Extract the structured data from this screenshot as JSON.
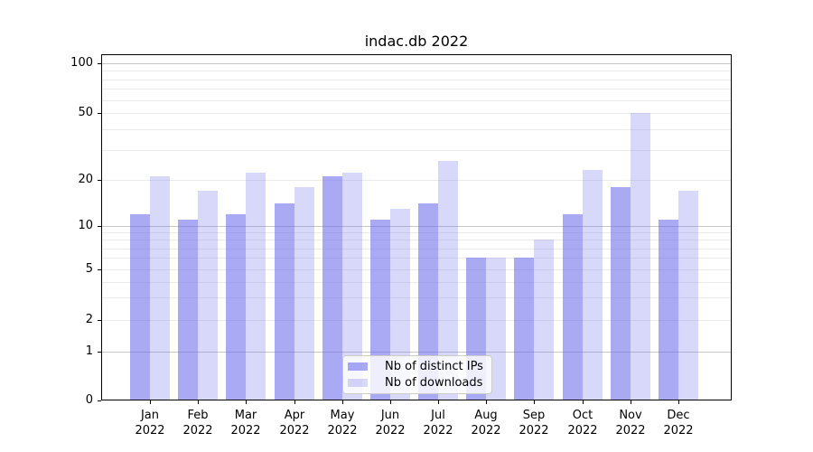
{
  "figure": {
    "background_color": "#ffffff",
    "text_color": "#000000",
    "spine_color": "#000000",
    "grid_major_color": "#c8c8c8",
    "grid_minor_color": "#ebebeb"
  },
  "chart_data": {
    "type": "bar",
    "title": "indac.db 2022",
    "xlabel": "",
    "ylabel": "",
    "x_tick_month_labels": [
      "Jan",
      "Feb",
      "Mar",
      "Apr",
      "May",
      "Jun",
      "Jul",
      "Aug",
      "Sep",
      "Oct",
      "Nov",
      "Dec"
    ],
    "x_tick_year_label": "2022",
    "categories": [
      "Jan 2022",
      "Feb 2022",
      "Mar 2022",
      "Apr 2022",
      "May 2022",
      "Jun 2022",
      "Jul 2022",
      "Aug 2022",
      "Sep 2022",
      "Oct 2022",
      "Nov 2022",
      "Dec 2022"
    ],
    "series": [
      {
        "name": "Nb of distinct IPs",
        "color": "#6464eb",
        "alpha": 0.55,
        "values": [
          12,
          11,
          12,
          14,
          21,
          11,
          14,
          6,
          6,
          12,
          18,
          11
        ]
      },
      {
        "name": "Nb of downloads",
        "color": "#6464eb",
        "alpha": 0.25,
        "values": [
          21,
          17,
          22,
          18,
          22,
          13,
          26,
          6,
          8,
          23,
          50,
          17
        ]
      }
    ],
    "y_axis": {
      "scale": "log-like (symlog, linear below 1)",
      "major_ticks": [
        0,
        1,
        2,
        5,
        10,
        20,
        50,
        100
      ],
      "dark_gridlines_at": [
        1,
        10,
        100
      ],
      "light_gridlines_at": [
        2,
        5,
        20,
        50
      ],
      "minor_gridlines_at": [
        3,
        4,
        6,
        7,
        8,
        9,
        30,
        40,
        60,
        70,
        80,
        90
      ],
      "ylim": [
        0,
        115
      ]
    },
    "legend": {
      "position": "lower center, inside plot",
      "entries": [
        "Nb of distinct IPs",
        "Nb of downloads"
      ]
    },
    "grid": true
  }
}
